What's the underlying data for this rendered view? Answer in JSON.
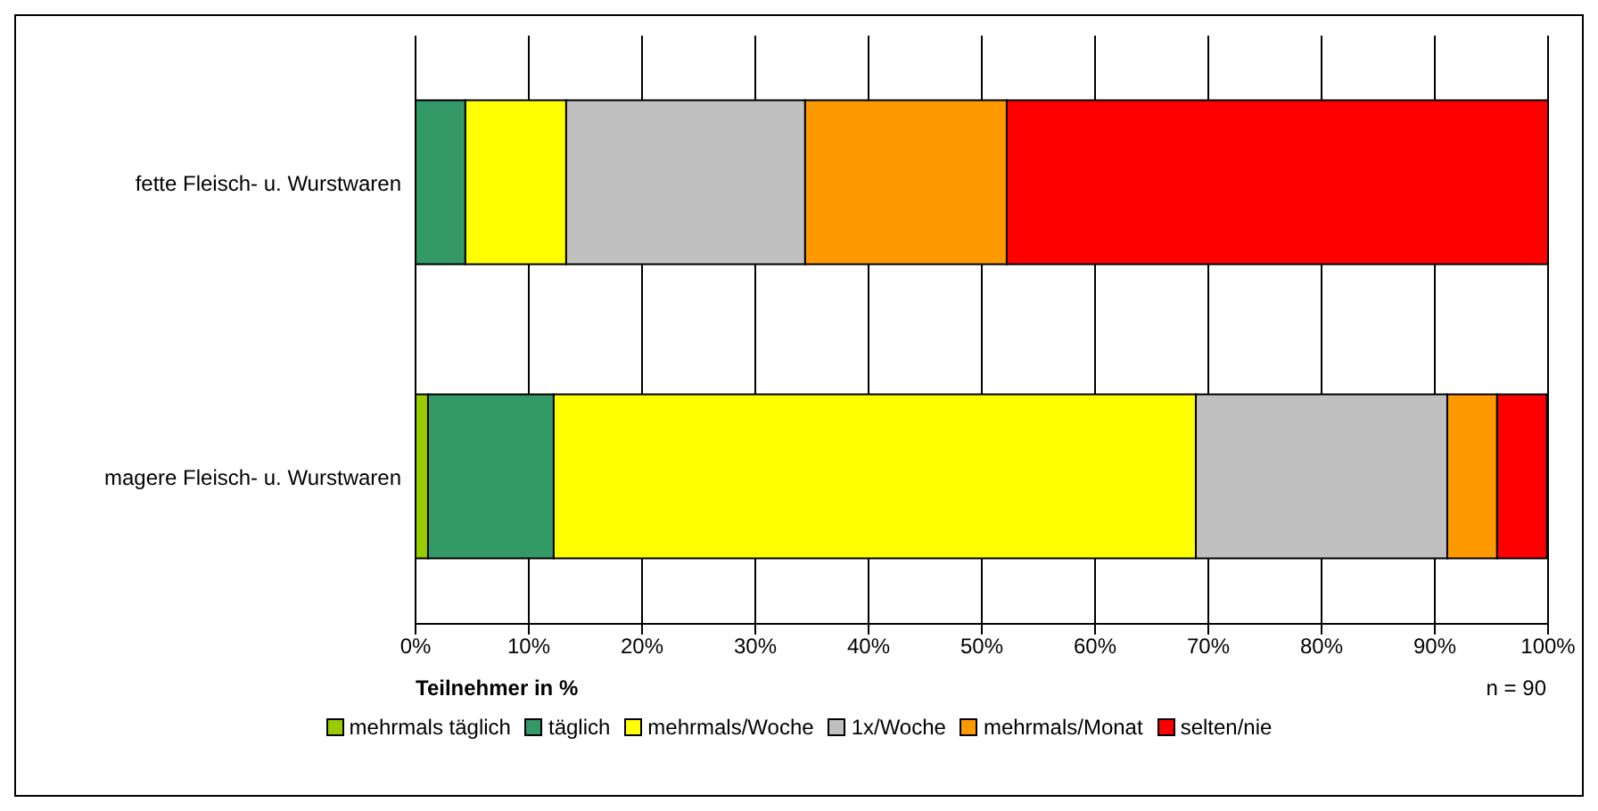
{
  "chart_data": {
    "type": "bar",
    "orientation": "horizontal",
    "stacked": true,
    "categories": [
      "fette Fleisch- u. Wurstwaren",
      "magere Fleisch- u. Wurstwaren"
    ],
    "series": [
      {
        "name": "mehrmals täglich",
        "color": "#99cc00",
        "values": [
          0,
          1.1
        ]
      },
      {
        "name": "täglich",
        "color": "#339966",
        "values": [
          4.4,
          11.1
        ]
      },
      {
        "name": "mehrmals/Woche",
        "color": "#ffff00",
        "values": [
          8.9,
          56.7
        ]
      },
      {
        "name": "1x/Woche",
        "color": "#c0c0c0",
        "values": [
          21.1,
          22.2
        ]
      },
      {
        "name": "mehrmals/Monat",
        "color": "#ff9900",
        "values": [
          17.8,
          4.4
        ]
      },
      {
        "name": "selten/nie",
        "color": "#ff0000",
        "values": [
          47.8,
          4.4
        ]
      }
    ],
    "xlim": [
      0,
      100
    ],
    "xticks": [
      {
        "value": 0,
        "label": "0%"
      },
      {
        "value": 10,
        "label": "10%"
      },
      {
        "value": 20,
        "label": "20%"
      },
      {
        "value": 30,
        "label": "30%"
      },
      {
        "value": 40,
        "label": "40%"
      },
      {
        "value": 50,
        "label": "50%"
      },
      {
        "value": 60,
        "label": "60%"
      },
      {
        "value": 70,
        "label": "70%"
      },
      {
        "value": 80,
        "label": "80%"
      },
      {
        "value": 90,
        "label": "90%"
      },
      {
        "value": 100,
        "label": "100%"
      }
    ],
    "xlabel": "Teilnehmer in %",
    "annotations": [
      "n = 90"
    ],
    "grid": "x",
    "legend": "bottom"
  }
}
